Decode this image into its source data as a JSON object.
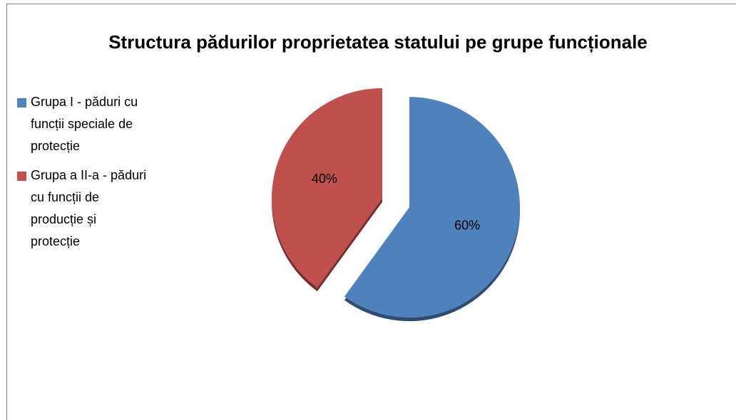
{
  "chart_data": {
    "type": "pie",
    "title": "Structura pădurilor proprietatea statului pe grupe funcționale",
    "categories": [
      "Grupa I - păduri cu funcții speciale de protecție",
      "Grupa a II-a - păduri cu funcții de producție și protecție"
    ],
    "values": [
      60,
      40
    ],
    "value_labels": [
      "60%",
      "40%"
    ],
    "colors": [
      "#4f81bd",
      "#c0504d"
    ],
    "legend": "left"
  }
}
